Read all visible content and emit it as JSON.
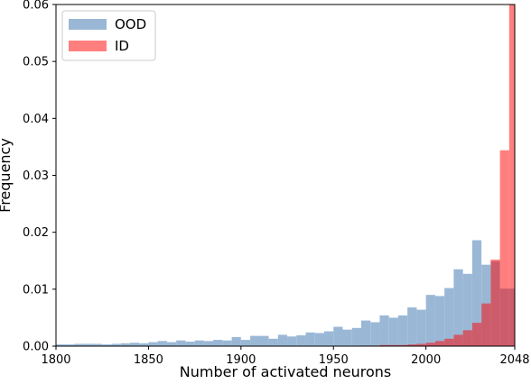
{
  "chart_data": {
    "type": "bar",
    "xlabel": "Number of activated neurons",
    "ylabel": "Frequency",
    "xlim": [
      1800,
      2048
    ],
    "ylim": [
      0,
      0.06
    ],
    "x_ticks": [
      1800,
      1850,
      1900,
      1950,
      2000,
      2048
    ],
    "y_ticks": [
      0.0,
      0.01,
      0.02,
      0.03,
      0.04,
      0.05,
      0.06
    ],
    "y_tick_labels": [
      "0.00",
      "0.01",
      "0.02",
      "0.03",
      "0.04",
      "0.05",
      "0.06"
    ],
    "legend_position": "top-left",
    "grid": false,
    "series": [
      {
        "name": "OOD",
        "color": "#9ab8d6",
        "opacity": 1,
        "bins": [
          [
            1800,
            1810,
            0.0003
          ],
          [
            1810,
            1825,
            0.0004
          ],
          [
            1825,
            1830,
            0.0003
          ],
          [
            1830,
            1835,
            0.0004
          ],
          [
            1835,
            1840,
            0.0005
          ],
          [
            1840,
            1845,
            0.0006
          ],
          [
            1845,
            1850,
            0.0005
          ],
          [
            1850,
            1855,
            0.0007
          ],
          [
            1855,
            1860,
            0.0009
          ],
          [
            1860,
            1865,
            0.0007
          ],
          [
            1865,
            1870,
            0.001
          ],
          [
            1870,
            1875,
            0.0008
          ],
          [
            1875,
            1880,
            0.001
          ],
          [
            1880,
            1885,
            0.0009
          ],
          [
            1885,
            1890,
            0.0011
          ],
          [
            1890,
            1895,
            0.001
          ],
          [
            1895,
            1900,
            0.0016
          ],
          [
            1900,
            1905,
            0.0011
          ],
          [
            1905,
            1915,
            0.0018
          ],
          [
            1915,
            1920,
            0.0013
          ],
          [
            1920,
            1925,
            0.002
          ],
          [
            1925,
            1930,
            0.0017
          ],
          [
            1930,
            1935,
            0.0019
          ],
          [
            1935,
            1940,
            0.0024
          ],
          [
            1940,
            1945,
            0.0023
          ],
          [
            1945,
            1950,
            0.0026
          ],
          [
            1950,
            1955,
            0.0034
          ],
          [
            1955,
            1960,
            0.0029
          ],
          [
            1960,
            1965,
            0.0032
          ],
          [
            1965,
            1970,
            0.0045
          ],
          [
            1970,
            1975,
            0.0042
          ],
          [
            1975,
            1980,
            0.0054
          ],
          [
            1980,
            1985,
            0.005
          ],
          [
            1985,
            1990,
            0.0054
          ],
          [
            1990,
            1995,
            0.0068
          ],
          [
            1995,
            2000,
            0.0064
          ],
          [
            2000,
            2005,
            0.009
          ],
          [
            2005,
            2010,
            0.0088
          ],
          [
            2010,
            2015,
            0.0102
          ],
          [
            2015,
            2020,
            0.0135
          ],
          [
            2020,
            2025,
            0.0127
          ],
          [
            2025,
            2030,
            0.0186
          ],
          [
            2030,
            2035,
            0.0143
          ],
          [
            2035,
            2040,
            0.0149
          ],
          [
            2040,
            2045,
            0.0101
          ],
          [
            2045,
            2048,
            0.0101
          ]
        ]
      },
      {
        "name": "ID",
        "color": "#ff0000",
        "opacity": 0.5,
        "bins": [
          [
            1965,
            1975,
            0.0001
          ],
          [
            1975,
            1985,
            0.0002
          ],
          [
            1985,
            1990,
            0.0002
          ],
          [
            1990,
            1995,
            0.0003
          ],
          [
            1995,
            2000,
            0.0004
          ],
          [
            2000,
            2005,
            0.0006
          ],
          [
            2005,
            2010,
            0.0009
          ],
          [
            2010,
            2015,
            0.0013
          ],
          [
            2015,
            2020,
            0.002
          ],
          [
            2020,
            2025,
            0.0028
          ],
          [
            2025,
            2030,
            0.0041
          ],
          [
            2030,
            2035,
            0.0075
          ],
          [
            2035,
            2040,
            0.0152
          ],
          [
            2040,
            2045,
            0.0344
          ],
          [
            2045,
            2048,
            0.06
          ]
        ]
      }
    ]
  }
}
